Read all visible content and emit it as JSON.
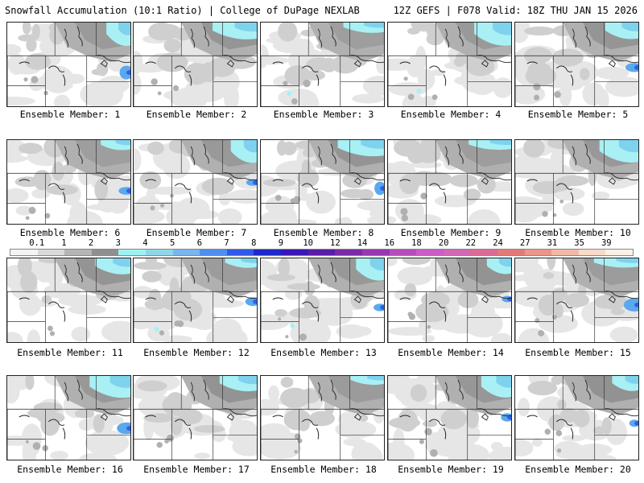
{
  "header": {
    "title_left": "Snowfall Accumulation (10:1 Ratio) | College of DuPage NEXLAB",
    "title_right": "12Z GEFS | F078 Valid: 18Z THU JAN 15 2026"
  },
  "colorbar": {
    "labels": [
      "0.1",
      "1",
      "2",
      "3",
      "4",
      "5",
      "6",
      "7",
      "8",
      "9",
      "10",
      "12",
      "14",
      "16",
      "18",
      "20",
      "22",
      "24",
      "27",
      "31",
      "35",
      "39"
    ],
    "colors": [
      "#f4f4f4",
      "#d9d9d9",
      "#b5b5b5",
      "#8f8f8f",
      "#9ff2f2",
      "#8fd6ea",
      "#79b6ee",
      "#4f8ef0",
      "#3158e6",
      "#1d28c8",
      "#3a16b4",
      "#5a1ca8",
      "#7a2aa6",
      "#9838b0",
      "#b64cbc",
      "#cc5cc6",
      "#d466b6",
      "#dc6a96",
      "#e47a78",
      "#ec9688",
      "#f2b8a6",
      "#f8dac8",
      "#fdf0e6"
    ]
  },
  "panels": [
    {
      "label": "Ensemble Member: 1"
    },
    {
      "label": "Ensemble Member: 2"
    },
    {
      "label": "Ensemble Member: 3"
    },
    {
      "label": "Ensemble Member: 4"
    },
    {
      "label": "Ensemble Member: 5"
    },
    {
      "label": "Ensemble Member: 6"
    },
    {
      "label": "Ensemble Member: 7"
    },
    {
      "label": "Ensemble Member: 8"
    },
    {
      "label": "Ensemble Member: 9"
    },
    {
      "label": "Ensemble Member: 10"
    },
    {
      "label": "Ensemble Member: 11"
    },
    {
      "label": "Ensemble Member: 12"
    },
    {
      "label": "Ensemble Member: 13"
    },
    {
      "label": "Ensemble Member: 14"
    },
    {
      "label": "Ensemble Member: 15"
    },
    {
      "label": "Ensemble Member: 16"
    },
    {
      "label": "Ensemble Member: 17"
    },
    {
      "label": "Ensemble Member: 18"
    },
    {
      "label": "Ensemble Member: 19"
    },
    {
      "label": "Ensemble Member: 20"
    }
  ]
}
